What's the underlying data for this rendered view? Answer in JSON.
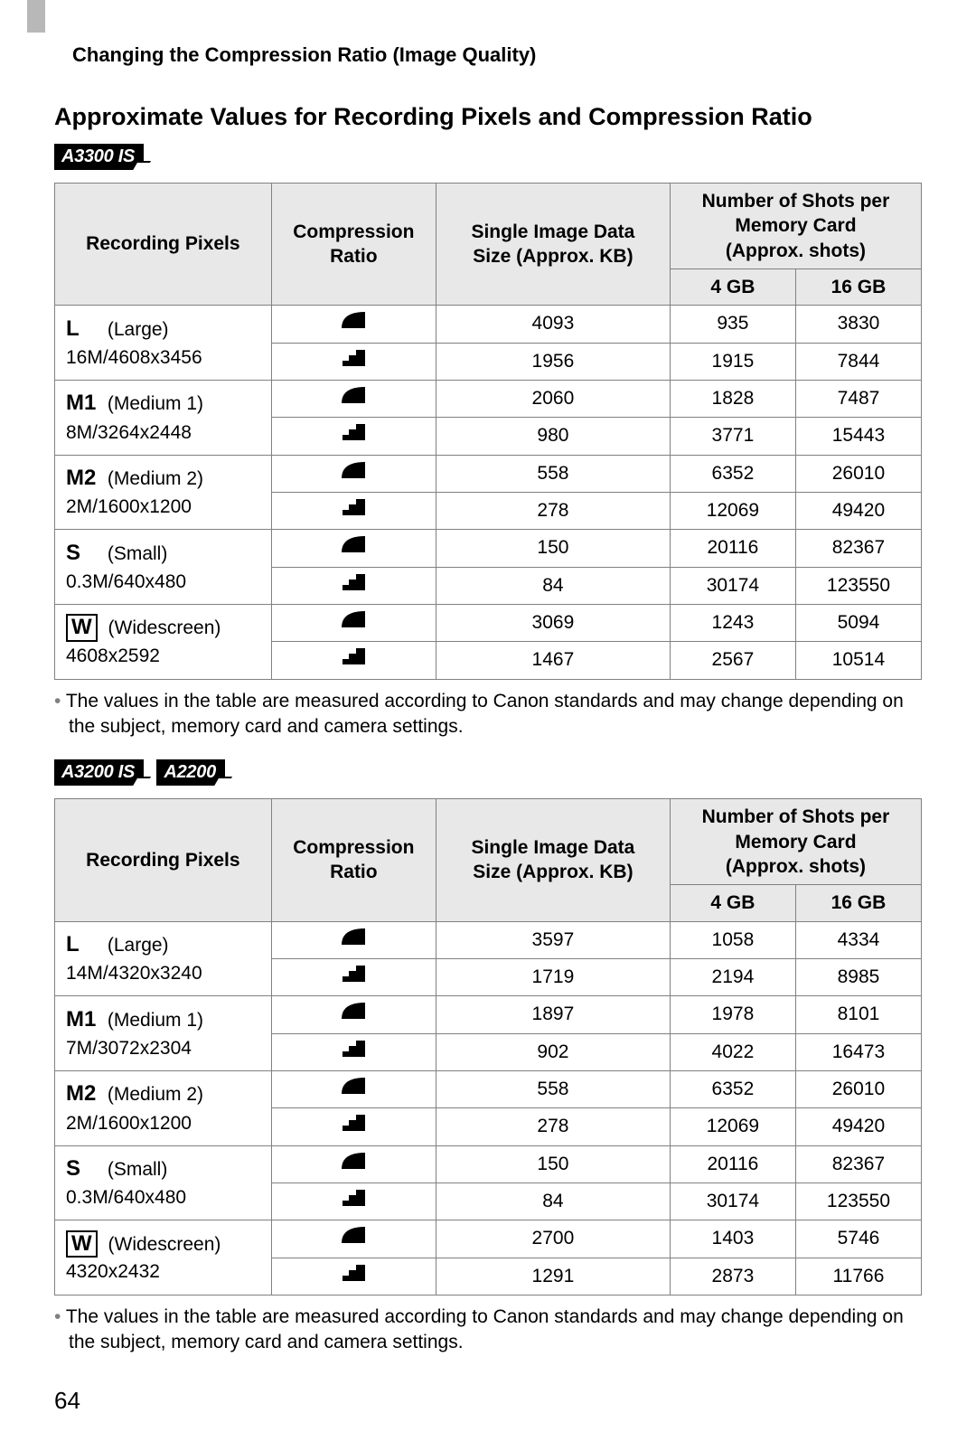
{
  "section_header": "Changing the Compression Ratio (Image Quality)",
  "page_title": "Approximate Values for Recording Pixels and Compression Ratio",
  "model_badge_1": "A3300 IS",
  "model_badges_2": [
    "A3200 IS",
    "A2200"
  ],
  "columns": {
    "recording_pixels": "Recording Pixels",
    "compression_ratio": "Compression Ratio",
    "single_image": "Single Image Data Size (Approx. KB)",
    "shots_per_card": "Number of Shots per Memory Card (Approx. shots)",
    "card_4gb": "4 GB",
    "card_16gb": "16 GB"
  },
  "icons": {
    "fine": "fine",
    "normal": "normal"
  },
  "table1": {
    "rows": [
      {
        "letter": "L",
        "boxed": false,
        "name": "(Large)",
        "res": "16M/4608x3456",
        "fine": {
          "size": "4093",
          "g4": "935",
          "g16": "3830"
        },
        "normal": {
          "size": "1956",
          "g4": "1915",
          "g16": "7844"
        }
      },
      {
        "letter": "M1",
        "boxed": false,
        "name": "(Medium 1)",
        "res": "8M/3264x2448",
        "fine": {
          "size": "2060",
          "g4": "1828",
          "g16": "7487"
        },
        "normal": {
          "size": "980",
          "g4": "3771",
          "g16": "15443"
        }
      },
      {
        "letter": "M2",
        "boxed": false,
        "name": "(Medium 2)",
        "res": "2M/1600x1200",
        "fine": {
          "size": "558",
          "g4": "6352",
          "g16": "26010"
        },
        "normal": {
          "size": "278",
          "g4": "12069",
          "g16": "49420"
        }
      },
      {
        "letter": "S",
        "boxed": false,
        "name": "(Small)",
        "res": "0.3M/640x480",
        "fine": {
          "size": "150",
          "g4": "20116",
          "g16": "82367"
        },
        "normal": {
          "size": "84",
          "g4": "30174",
          "g16": "123550"
        }
      },
      {
        "letter": "W",
        "boxed": true,
        "name": "(Widescreen)",
        "res": "4608x2592",
        "fine": {
          "size": "3069",
          "g4": "1243",
          "g16": "5094"
        },
        "normal": {
          "size": "1467",
          "g4": "2567",
          "g16": "10514"
        }
      }
    ]
  },
  "table2": {
    "rows": [
      {
        "letter": "L",
        "boxed": false,
        "name": "(Large)",
        "res": "14M/4320x3240",
        "fine": {
          "size": "3597",
          "g4": "1058",
          "g16": "4334"
        },
        "normal": {
          "size": "1719",
          "g4": "2194",
          "g16": "8985"
        }
      },
      {
        "letter": "M1",
        "boxed": false,
        "name": "(Medium 1)",
        "res": "7M/3072x2304",
        "fine": {
          "size": "1897",
          "g4": "1978",
          "g16": "8101"
        },
        "normal": {
          "size": "902",
          "g4": "4022",
          "g16": "16473"
        }
      },
      {
        "letter": "M2",
        "boxed": false,
        "name": "(Medium 2)",
        "res": "2M/1600x1200",
        "fine": {
          "size": "558",
          "g4": "6352",
          "g16": "26010"
        },
        "normal": {
          "size": "278",
          "g4": "12069",
          "g16": "49420"
        }
      },
      {
        "letter": "S",
        "boxed": false,
        "name": "(Small)",
        "res": "0.3M/640x480",
        "fine": {
          "size": "150",
          "g4": "20116",
          "g16": "82367"
        },
        "normal": {
          "size": "84",
          "g4": "30174",
          "g16": "123550"
        }
      },
      {
        "letter": "W",
        "boxed": true,
        "name": "(Widescreen)",
        "res": "4320x2432",
        "fine": {
          "size": "2700",
          "g4": "1403",
          "g16": "5746"
        },
        "normal": {
          "size": "1291",
          "g4": "2873",
          "g16": "11766"
        }
      }
    ]
  },
  "note_text": "The values in the table are measured according to Canon standards and may change depending on the subject, memory card and camera settings.",
  "page_number": "64",
  "style": {
    "page_bg": "#ffffff",
    "text_color": "#000000",
    "header_bg": "#e8e8e8",
    "border_color": "#808080",
    "tab_marker_color": "#b8b8b8",
    "badge_bg": "#000000",
    "badge_fg": "#ffffff",
    "bullet_color": "#808080",
    "body_font_size": 21,
    "title_font_size": 27,
    "section_font_size": 22,
    "col_widths_pct": [
      25,
      19,
      27,
      14.5,
      14.5
    ]
  }
}
